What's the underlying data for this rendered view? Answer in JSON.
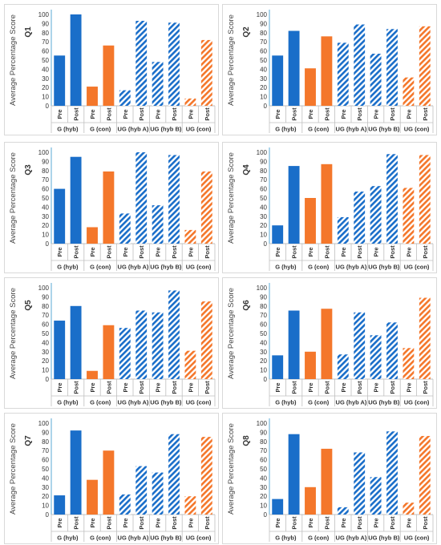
{
  "shared": {
    "ylabel": "Average Percentage Score",
    "x_sub": [
      "Pre",
      "Post"
    ],
    "groups": [
      "G (hyb)",
      "G (con)",
      "UG (hyb A)",
      "UG (hyb B)",
      "UG (con)"
    ],
    "ticks": [
      "0",
      "10",
      "20",
      "30",
      "40",
      "50",
      "60",
      "70",
      "80",
      "90",
      "100"
    ],
    "colors": {
      "blue": "#1a6ec9",
      "orange": "#f4772b"
    }
  },
  "chart_data": [
    {
      "type": "bar",
      "panel_label": "Q1",
      "ylim": [
        0,
        100
      ],
      "categories": [
        "G (hyb) Pre",
        "G (hyb) Post",
        "G (con) Pre",
        "G (con) Post",
        "UG (hyb A) Pre",
        "UG (hyb A) Post",
        "UG (hyb B) Pre",
        "UG (hyb B) Post",
        "UG (con) Pre",
        "UG (con) Post"
      ],
      "values": [
        55,
        100,
        21,
        66,
        17,
        93,
        48,
        91,
        8,
        72
      ]
    },
    {
      "type": "bar",
      "panel_label": "Q2",
      "ylim": [
        0,
        100
      ],
      "categories": [
        "G (hyb) Pre",
        "G (hyb) Post",
        "G (con) Pre",
        "G (con) Post",
        "UG (hyb A) Pre",
        "UG (hyb A) Post",
        "UG (hyb B) Pre",
        "UG (hyb B) Post",
        "UG (con) Pre",
        "UG (con) Post"
      ],
      "values": [
        55,
        82,
        41,
        76,
        69,
        89,
        57,
        84,
        31,
        87
      ]
    },
    {
      "type": "bar",
      "panel_label": "Q3",
      "ylim": [
        0,
        100
      ],
      "categories": [
        "G (hyb) Pre",
        "G (hyb) Post",
        "G (con) Pre",
        "G (con) Post",
        "UG (hyb A) Pre",
        "UG (hyb A) Post",
        "UG (hyb B) Pre",
        "UG (hyb B) Post",
        "UG (con) Pre",
        "UG (con) Post"
      ],
      "values": [
        60,
        95,
        18,
        79,
        33,
        100,
        42,
        97,
        15,
        79
      ]
    },
    {
      "type": "bar",
      "panel_label": "Q4",
      "ylim": [
        0,
        100
      ],
      "categories": [
        "G (hyb) Pre",
        "G (hyb) Post",
        "G (con) Pre",
        "G (con) Post",
        "UG (hyb A) Pre",
        "UG (hyb A) Post",
        "UG (hyb B) Pre",
        "UG (hyb B) Post",
        "UG (con) Pre",
        "UG (con) Post"
      ],
      "values": [
        20,
        85,
        50,
        87,
        29,
        57,
        63,
        98,
        61,
        97
      ]
    },
    {
      "type": "bar",
      "panel_label": "Q5",
      "ylim": [
        0,
        100
      ],
      "categories": [
        "G (hyb) Pre",
        "G (hyb) Post",
        "G (con) Pre",
        "G (con) Post",
        "UG (hyb A) Pre",
        "UG (hyb A) Post",
        "UG (hyb B) Pre",
        "UG (hyb B) Post",
        "UG (con) Pre",
        "UG (con) Post"
      ],
      "values": [
        64,
        80,
        9,
        59,
        56,
        75,
        73,
        97,
        31,
        85
      ]
    },
    {
      "type": "bar",
      "panel_label": "Q6",
      "ylim": [
        0,
        100
      ],
      "categories": [
        "G (hyb) Pre",
        "G (hyb) Post",
        "G (con) Pre",
        "G (con) Post",
        "UG (hyb A) Pre",
        "UG (hyb A) Post",
        "UG (hyb B) Pre",
        "UG (hyb B) Post",
        "UG (con) Pre",
        "UG (con) Post"
      ],
      "values": [
        26,
        75,
        30,
        77,
        27,
        73,
        48,
        62,
        34,
        89
      ]
    },
    {
      "type": "bar",
      "panel_label": "Q7",
      "ylim": [
        0,
        100
      ],
      "categories": [
        "G (hyb) Pre",
        "G (hyb) Post",
        "G (con) Pre",
        "G (con) Post",
        "UG (hyb A) Pre",
        "UG (hyb A) Post",
        "UG (hyb B) Pre",
        "UG (hyb B) Post",
        "UG (con) Pre",
        "UG (con) Post"
      ],
      "values": [
        21,
        92,
        38,
        70,
        22,
        53,
        46,
        88,
        20,
        85
      ]
    },
    {
      "type": "bar",
      "panel_label": "Q8",
      "ylim": [
        0,
        100
      ],
      "categories": [
        "G (hyb) Pre",
        "G (hyb) Post",
        "G (con) Pre",
        "G (con) Post",
        "UG (hyb A) Pre",
        "UG (hyb A) Post",
        "UG (hyb B) Pre",
        "UG (hyb B) Post",
        "UG (con) Pre",
        "UG (con) Post"
      ],
      "values": [
        17,
        88,
        30,
        72,
        8,
        68,
        41,
        91,
        13,
        86
      ]
    }
  ]
}
